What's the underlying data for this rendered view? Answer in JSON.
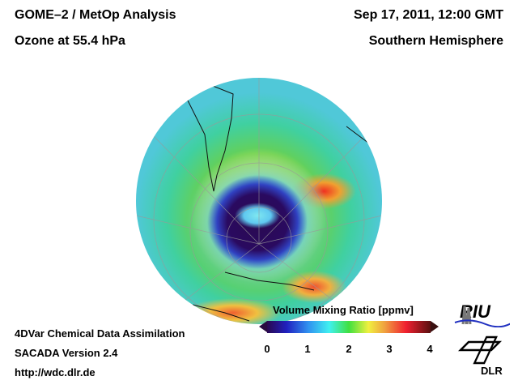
{
  "header": {
    "title": "GOME–2 / MetOp Analysis",
    "subtitle": "Ozone at 55.4 hPa",
    "datetime": "Sep 17, 2011, 12:00 GMT",
    "region": "Southern Hemisphere"
  },
  "footer": {
    "line1": "4DVar Chemical Data Assimilation",
    "line2": "SACADA Version 2.4",
    "line3": "http://wdc.dlr.de"
  },
  "colorbar": {
    "label": "Volume Mixing Ratio [ppmv]",
    "ticks": [
      "0",
      "1",
      "2",
      "3",
      "4"
    ],
    "range": [
      0,
      4
    ],
    "colors": [
      "#2a0850",
      "#2020c0",
      "#3090f0",
      "#40f0f0",
      "#40e040",
      "#f0f040",
      "#f0a040",
      "#f02030",
      "#5a1010"
    ]
  },
  "logos": {
    "riu": "RIU",
    "dlr": "DLR"
  }
}
